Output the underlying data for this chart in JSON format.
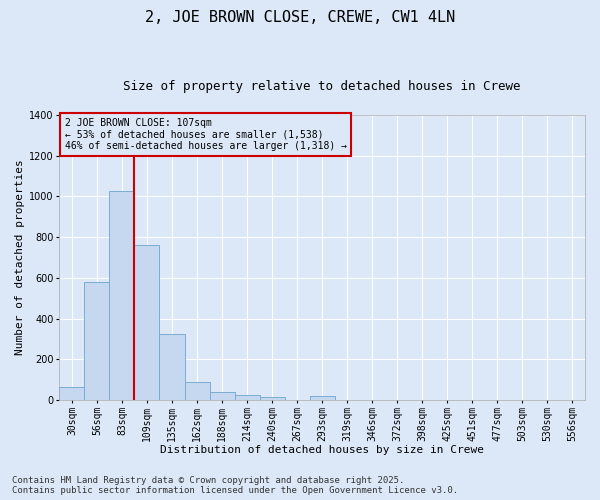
{
  "title": "2, JOE BROWN CLOSE, CREWE, CW1 4LN",
  "subtitle": "Size of property relative to detached houses in Crewe",
  "xlabel": "Distribution of detached houses by size in Crewe",
  "ylabel": "Number of detached properties",
  "categories": [
    "30sqm",
    "56sqm",
    "83sqm",
    "109sqm",
    "135sqm",
    "162sqm",
    "188sqm",
    "214sqm",
    "240sqm",
    "267sqm",
    "293sqm",
    "319sqm",
    "346sqm",
    "372sqm",
    "398sqm",
    "425sqm",
    "451sqm",
    "477sqm",
    "503sqm",
    "530sqm",
    "556sqm"
  ],
  "values": [
    65,
    578,
    1025,
    760,
    325,
    90,
    38,
    25,
    15,
    0,
    20,
    0,
    0,
    0,
    0,
    0,
    0,
    0,
    0,
    0,
    0
  ],
  "bar_color": "#c5d8f0",
  "bar_edge_color": "#7aadd4",
  "bg_color": "#dce8f8",
  "grid_color": "#ffffff",
  "vline_color": "#cc0000",
  "vline_index": 3,
  "annotation_text": "2 JOE BROWN CLOSE: 107sqm\n← 53% of detached houses are smaller (1,538)\n46% of semi-detached houses are larger (1,318) →",
  "annotation_box_color": "#cc0000",
  "footer_line1": "Contains HM Land Registry data © Crown copyright and database right 2025.",
  "footer_line2": "Contains public sector information licensed under the Open Government Licence v3.0.",
  "ylim": [
    0,
    1400
  ],
  "yticks": [
    0,
    200,
    400,
    600,
    800,
    1000,
    1200,
    1400
  ],
  "title_fontsize": 11,
  "subtitle_fontsize": 9,
  "axis_label_fontsize": 8,
  "tick_fontsize": 7,
  "annotation_fontsize": 7,
  "footer_fontsize": 6.5
}
